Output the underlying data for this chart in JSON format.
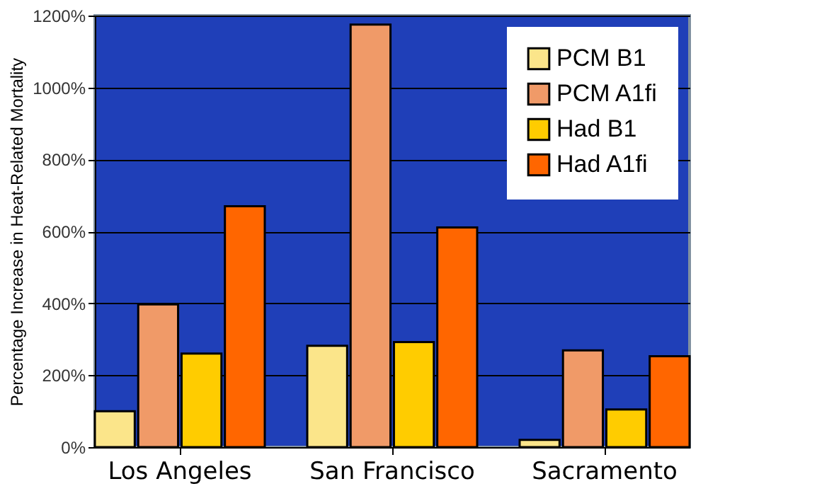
{
  "chart_data": {
    "type": "bar",
    "ylabel": "Percentage Increase in Heat-Related Mortality",
    "categories": [
      "Los Angeles",
      "San Francisco",
      "Sacramento"
    ],
    "series": [
      {
        "name": "PCM B1",
        "color": "#fbe58a",
        "values": [
          100,
          282,
          20
        ]
      },
      {
        "name": "PCM A1fi",
        "color": "#f09a68",
        "values": [
          397,
          1175,
          269
        ]
      },
      {
        "name": "Had B1",
        "color": "#ffcc00",
        "values": [
          260,
          292,
          105
        ]
      },
      {
        "name": "Had A1fi",
        "color": "#ff6600",
        "values": [
          670,
          611,
          253
        ]
      }
    ],
    "ylim": [
      0,
      1200
    ],
    "yticks": [
      {
        "value": 0,
        "label": "0%"
      },
      {
        "value": 200,
        "label": "200%"
      },
      {
        "value": 400,
        "label": "400%"
      },
      {
        "value": 600,
        "label": "600%"
      },
      {
        "value": 800,
        "label": "800%"
      },
      {
        "value": 1000,
        "label": "1000%"
      },
      {
        "value": 1200,
        "label": "1200%"
      }
    ],
    "grid": "y",
    "legend": "top right"
  }
}
